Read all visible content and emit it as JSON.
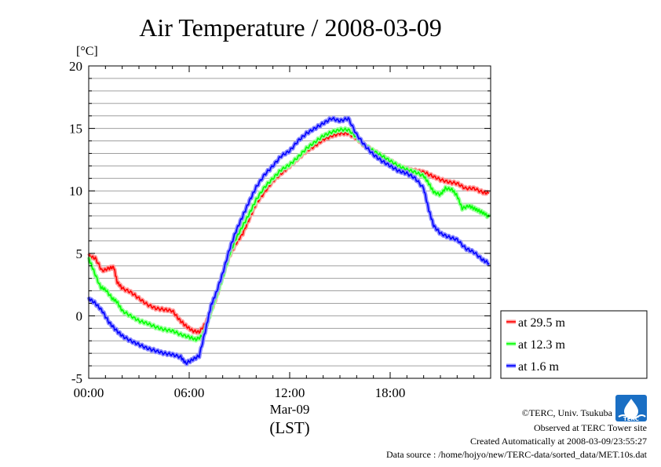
{
  "chart_data": {
    "type": "line",
    "title": "Air Temperature / 2008-03-09",
    "y_unit": "[°C]",
    "ylim": [
      -5,
      20
    ],
    "y_ticks": [
      "20",
      "15",
      "10",
      "5",
      "0",
      "-5"
    ],
    "xlim": [
      0,
      24
    ],
    "x_ticks": [
      "00:00",
      "06:00",
      "12:00",
      "18:00"
    ],
    "x_sublabel": "Mar-09",
    "xlabel": "(LST)",
    "grid": true,
    "legend_position": "right",
    "series": [
      {
        "name": "at 29.5 m",
        "color": "#ff0000",
        "points": [
          [
            0,
            4.8
          ],
          [
            0.4,
            4.6
          ],
          [
            0.8,
            3.6
          ],
          [
            1.2,
            3.8
          ],
          [
            1.5,
            3.9
          ],
          [
            1.7,
            2.7
          ],
          [
            2.0,
            2.2
          ],
          [
            2.5,
            1.9
          ],
          [
            3.0,
            1.4
          ],
          [
            3.5,
            0.9
          ],
          [
            4.0,
            0.6
          ],
          [
            4.5,
            0.5
          ],
          [
            5.0,
            0.4
          ],
          [
            5.4,
            -0.3
          ],
          [
            5.8,
            -0.8
          ],
          [
            6.2,
            -1.2
          ],
          [
            6.6,
            -1.3
          ],
          [
            7.0,
            -0.6
          ],
          [
            7.3,
            0.4
          ],
          [
            7.6,
            1.4
          ],
          [
            8.0,
            3.2
          ],
          [
            8.4,
            4.8
          ],
          [
            8.8,
            5.8
          ],
          [
            9.2,
            6.6
          ],
          [
            9.6,
            7.8
          ],
          [
            10.0,
            9.0
          ],
          [
            10.5,
            9.9
          ],
          [
            11.0,
            10.8
          ],
          [
            11.5,
            11.4
          ],
          [
            12.0,
            12.0
          ],
          [
            12.5,
            12.6
          ],
          [
            13.0,
            13.2
          ],
          [
            13.5,
            13.6
          ],
          [
            14.0,
            14.1
          ],
          [
            14.5,
            14.4
          ],
          [
            15.0,
            14.6
          ],
          [
            15.5,
            14.6
          ],
          [
            16.0,
            14.2
          ],
          [
            16.5,
            13.6
          ],
          [
            17.0,
            13.2
          ],
          [
            17.5,
            12.8
          ],
          [
            18.0,
            12.4
          ],
          [
            18.5,
            12.0
          ],
          [
            19.0,
            11.7
          ],
          [
            19.5,
            11.6
          ],
          [
            20.0,
            11.5
          ],
          [
            20.5,
            11.2
          ],
          [
            21.0,
            10.9
          ],
          [
            21.5,
            10.7
          ],
          [
            22.0,
            10.6
          ],
          [
            22.5,
            10.2
          ],
          [
            23.0,
            10.2
          ],
          [
            23.5,
            9.9
          ],
          [
            23.9,
            9.8
          ]
        ]
      },
      {
        "name": "at 12.3 m",
        "color": "#00ff00",
        "points": [
          [
            0,
            4.6
          ],
          [
            0.3,
            3.6
          ],
          [
            0.7,
            2.3
          ],
          [
            1.0,
            2.1
          ],
          [
            1.4,
            1.4
          ],
          [
            1.7,
            1.1
          ],
          [
            2.0,
            0.4
          ],
          [
            2.5,
            0.0
          ],
          [
            3.0,
            -0.4
          ],
          [
            3.5,
            -0.6
          ],
          [
            4.0,
            -0.9
          ],
          [
            4.5,
            -1.1
          ],
          [
            5.0,
            -1.2
          ],
          [
            5.5,
            -1.5
          ],
          [
            6.0,
            -1.7
          ],
          [
            6.4,
            -1.9
          ],
          [
            6.8,
            -1.6
          ],
          [
            7.1,
            -0.5
          ],
          [
            7.4,
            0.8
          ],
          [
            7.7,
            1.9
          ],
          [
            8.0,
            3.1
          ],
          [
            8.4,
            4.9
          ],
          [
            8.8,
            6.2
          ],
          [
            9.2,
            7.2
          ],
          [
            9.6,
            8.2
          ],
          [
            10.0,
            9.3
          ],
          [
            10.5,
            10.3
          ],
          [
            11.0,
            11.0
          ],
          [
            11.5,
            11.7
          ],
          [
            12.0,
            12.1
          ],
          [
            12.5,
            12.7
          ],
          [
            13.0,
            13.4
          ],
          [
            13.5,
            13.9
          ],
          [
            14.0,
            14.4
          ],
          [
            14.5,
            14.7
          ],
          [
            15.0,
            14.9
          ],
          [
            15.5,
            14.9
          ],
          [
            16.0,
            14.3
          ],
          [
            16.5,
            13.6
          ],
          [
            17.0,
            13.2
          ],
          [
            17.5,
            12.8
          ],
          [
            18.0,
            12.4
          ],
          [
            18.5,
            12.0
          ],
          [
            19.0,
            11.7
          ],
          [
            19.5,
            11.5
          ],
          [
            20.0,
            11.2
          ],
          [
            20.3,
            10.6
          ],
          [
            20.6,
            9.9
          ],
          [
            21.0,
            9.7
          ],
          [
            21.3,
            10.2
          ],
          [
            21.7,
            10.1
          ],
          [
            22.0,
            9.6
          ],
          [
            22.3,
            8.6
          ],
          [
            22.7,
            8.8
          ],
          [
            23.0,
            8.6
          ],
          [
            23.3,
            8.4
          ],
          [
            23.6,
            8.2
          ],
          [
            23.9,
            7.9
          ]
        ]
      },
      {
        "name": "at 1.6 m",
        "color": "#0000ff",
        "points": [
          [
            0,
            1.4
          ],
          [
            0.4,
            1.0
          ],
          [
            0.8,
            0.4
          ],
          [
            1.2,
            -0.5
          ],
          [
            1.6,
            -1.1
          ],
          [
            2.0,
            -1.6
          ],
          [
            2.5,
            -2.0
          ],
          [
            3.0,
            -2.3
          ],
          [
            3.5,
            -2.6
          ],
          [
            4.0,
            -2.8
          ],
          [
            4.5,
            -3.0
          ],
          [
            5.0,
            -3.1
          ],
          [
            5.5,
            -3.3
          ],
          [
            5.8,
            -3.8
          ],
          [
            6.2,
            -3.5
          ],
          [
            6.6,
            -3.2
          ],
          [
            7.0,
            -1.0
          ],
          [
            7.3,
            0.8
          ],
          [
            7.6,
            1.8
          ],
          [
            8.0,
            3.4
          ],
          [
            8.4,
            5.3
          ],
          [
            8.8,
            6.8
          ],
          [
            9.2,
            8.0
          ],
          [
            9.6,
            9.2
          ],
          [
            10.0,
            10.3
          ],
          [
            10.5,
            11.3
          ],
          [
            11.0,
            12.0
          ],
          [
            11.5,
            12.8
          ],
          [
            12.0,
            13.2
          ],
          [
            12.5,
            14.0
          ],
          [
            13.0,
            14.6
          ],
          [
            13.5,
            15.0
          ],
          [
            14.0,
            15.4
          ],
          [
            14.5,
            15.8
          ],
          [
            15.0,
            15.6
          ],
          [
            15.5,
            15.8
          ],
          [
            16.0,
            14.5
          ],
          [
            16.5,
            13.6
          ],
          [
            17.0,
            12.9
          ],
          [
            17.5,
            12.4
          ],
          [
            18.0,
            12.0
          ],
          [
            18.5,
            11.6
          ],
          [
            19.0,
            11.4
          ],
          [
            19.5,
            11.0
          ],
          [
            20.0,
            10.2
          ],
          [
            20.3,
            8.5
          ],
          [
            20.6,
            7.2
          ],
          [
            21.0,
            6.6
          ],
          [
            21.5,
            6.3
          ],
          [
            22.0,
            6.1
          ],
          [
            22.5,
            5.4
          ],
          [
            23.0,
            5.1
          ],
          [
            23.5,
            4.5
          ],
          [
            23.9,
            4.2
          ]
        ]
      }
    ]
  },
  "footer": {
    "copyright": "©TERC, Univ. Tsukuba",
    "observed": "Observed at TERC Tower site",
    "created": "Created Automatically at 2008-03-09/23:55:27",
    "source": "Data source : /home/hojyo/new/TERC-data/sorted_data/MET.10s.dat",
    "logo_text": "TERC"
  }
}
